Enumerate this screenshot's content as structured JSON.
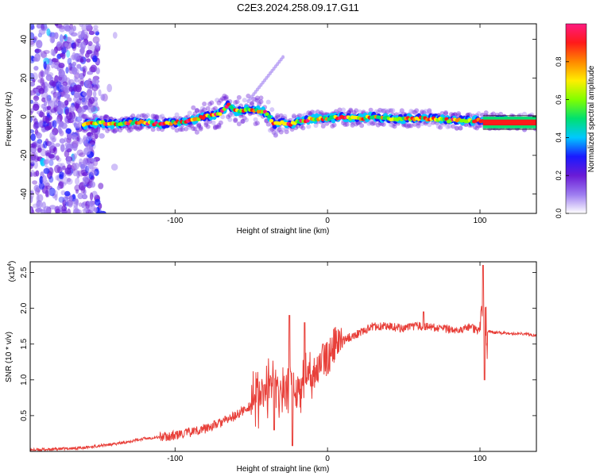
{
  "title": "C2E3.2024.258.09.17.G11",
  "chart_data": [
    {
      "type": "heatmap",
      "xlabel": "Height of straight line (km)",
      "ylabel": "Frequency (Hz)",
      "xlim": [
        -195,
        137
      ],
      "ylim": [
        -50,
        48
      ],
      "x_ticks": [
        -100,
        0,
        100
      ],
      "y_ticks": [
        -40,
        -20,
        0,
        20,
        40
      ],
      "colorbar": {
        "label": "Normalized spectral amplitude",
        "range": [
          0,
          1
        ],
        "ticks": [
          "0.0",
          "0.2",
          "0.4",
          "0.6",
          "0.8"
        ],
        "colors": [
          "#ffffff",
          "#9d7cf0",
          "#6a1bd6",
          "#1a1aff",
          "#00c8ff",
          "#00e070",
          "#80ff00",
          "#ffee00",
          "#ff8800",
          "#ff1a1a",
          "#ff1a80"
        ]
      },
      "ridge": [
        [
          -160,
          -4
        ],
        [
          -150,
          -3
        ],
        [
          -140,
          -4
        ],
        [
          -130,
          -3
        ],
        [
          -120,
          -3
        ],
        [
          -110,
          -4
        ],
        [
          -100,
          -3
        ],
        [
          -90,
          -2
        ],
        [
          -80,
          0
        ],
        [
          -70,
          2
        ],
        [
          -65,
          6
        ],
        [
          -60,
          3
        ],
        [
          -50,
          4
        ],
        [
          -40,
          2
        ],
        [
          -35,
          -4
        ],
        [
          -30,
          -3
        ],
        [
          -25,
          -4
        ],
        [
          -20,
          -3
        ],
        [
          -10,
          -1
        ],
        [
          0,
          -1
        ],
        [
          10,
          0
        ],
        [
          20,
          -1
        ],
        [
          30,
          0
        ],
        [
          40,
          -1
        ],
        [
          50,
          -1
        ],
        [
          60,
          -1
        ],
        [
          70,
          -1
        ],
        [
          80,
          -2
        ],
        [
          90,
          -2
        ],
        [
          100,
          -2
        ],
        [
          110,
          -2
        ],
        [
          137,
          -3
        ]
      ]
    },
    {
      "type": "line",
      "xlabel": "Height of straight line (km)",
      "ylabel": "SNR (10 * v/v)",
      "y_multiplier": "(x10",
      "y_multiplier_exp": "4",
      "xlim": [
        -195,
        137
      ],
      "ylim": [
        0,
        2.65
      ],
      "x_ticks": [
        -100,
        0,
        100
      ],
      "y_ticks": [
        0.5,
        1.0,
        1.5,
        2.0,
        2.5
      ],
      "y_tick_labels": [
        "0.5",
        "1.0",
        "1.5",
        "2.0",
        "2.5"
      ],
      "color": "#e8403a",
      "series": [
        {
          "x": [
            -195,
            -180,
            -160,
            -150,
            -140,
            -130,
            -120,
            -110,
            -100,
            -90,
            -80,
            -70,
            -60,
            -50,
            -45,
            -40,
            -35,
            -30,
            -25,
            -20,
            -15,
            -10,
            -5,
            0,
            5,
            10,
            15,
            20,
            25,
            30,
            40,
            50,
            60,
            70,
            80,
            90,
            95,
            100,
            102,
            105,
            110,
            120,
            130,
            137
          ],
          "y": [
            0.02,
            0.03,
            0.05,
            0.08,
            0.1,
            0.14,
            0.18,
            0.2,
            0.22,
            0.27,
            0.32,
            0.4,
            0.5,
            0.65,
            0.75,
            0.9,
            0.95,
            0.9,
            0.95,
            0.9,
            0.95,
            1.1,
            1.2,
            1.3,
            1.5,
            1.55,
            1.6,
            1.65,
            1.7,
            1.75,
            1.75,
            1.72,
            1.75,
            1.73,
            1.7,
            1.72,
            1.72,
            1.68,
            1.6,
            1.68,
            1.66,
            1.65,
            1.64,
            1.62
          ]
        }
      ],
      "spikes": [
        [
          102,
          2.6
        ],
        [
          103,
          1.0
        ],
        [
          -25,
          1.9
        ],
        [
          -23,
          0.08
        ],
        [
          -35,
          0.3
        ],
        [
          -15,
          1.8
        ],
        [
          -3,
          1.5
        ],
        [
          63,
          1.95
        ]
      ]
    }
  ]
}
